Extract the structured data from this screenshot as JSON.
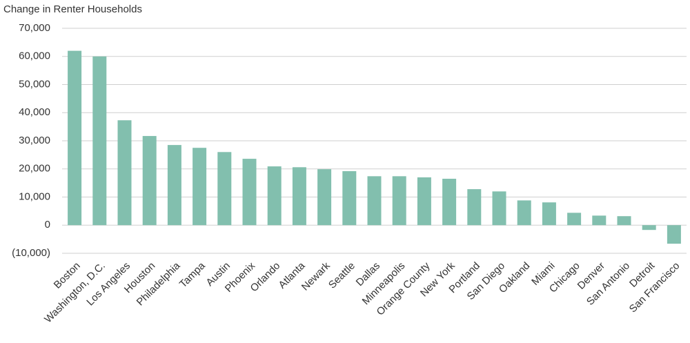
{
  "chart_data": {
    "type": "bar",
    "title": "Change in Renter Households",
    "categories": [
      "Boston",
      "Washington, D.C.",
      "Los Angeles",
      "Houston",
      "Philadelphia",
      "Tampa",
      "Austin",
      "Phoenix",
      "Orlando",
      "Atlanta",
      "Newark",
      "Seattle",
      "Dallas",
      "Minneapolis",
      "Orange County",
      "New York",
      "Portland",
      "San Diego",
      "Oakland",
      "Miami",
      "Chicago",
      "Denver",
      "San Antonio",
      "Detroit",
      "San Francisco"
    ],
    "values": [
      62000,
      60000,
      37300,
      31700,
      28500,
      27500,
      26000,
      23600,
      20900,
      20600,
      19900,
      19200,
      17400,
      17400,
      17000,
      16500,
      12800,
      12000,
      8800,
      8100,
      4400,
      3400,
      3200,
      -1700,
      -6600
    ],
    "color": "#82bfae",
    "ylim": [
      -10000,
      70000
    ],
    "yticks": [
      {
        "value": -10000,
        "label": "(10,000)"
      },
      0,
      {
        "value": 10000,
        "label": "10,000"
      },
      {
        "value": 20000,
        "label": "20,000"
      },
      {
        "value": 30000,
        "label": "30,000"
      },
      {
        "value": 40000,
        "label": "40,000"
      },
      {
        "value": 50000,
        "label": "50,000"
      },
      {
        "value": 60000,
        "label": "60,000"
      },
      {
        "value": 70000,
        "label": "70,000"
      }
    ],
    "grid": true
  }
}
